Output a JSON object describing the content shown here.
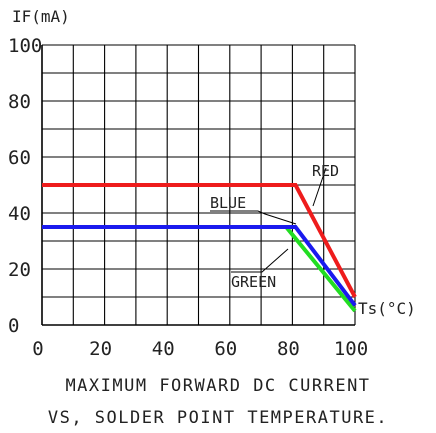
{
  "chart_data": {
    "type": "line",
    "title": "MAXIMUM FORWARD DC CURRENT",
    "subtitle": "VS, SOLDER POINT TEMPERATURE.",
    "ylabel": "IF(mA)",
    "xlabel": "Ts(°C)",
    "xlim": [
      0,
      100
    ],
    "ylim": [
      0,
      100
    ],
    "x_ticks": [
      "0",
      "20",
      "40",
      "60",
      "80",
      "100"
    ],
    "y_ticks": [
      "0",
      "20",
      "40",
      "60",
      "80",
      "100"
    ],
    "grid": true,
    "series": [
      {
        "name": "RED",
        "color": "#ee1c1c",
        "x": [
          0,
          81,
          100
        ],
        "y": [
          50,
          50,
          10
        ]
      },
      {
        "name": "BLUE",
        "color": "#1a1aee",
        "x": [
          0,
          81,
          100
        ],
        "y": [
          35,
          35,
          7
        ]
      },
      {
        "name": "GREEN",
        "color": "#22dd22",
        "x": [
          0,
          78,
          100
        ],
        "y": [
          35,
          35,
          5
        ]
      }
    ]
  }
}
